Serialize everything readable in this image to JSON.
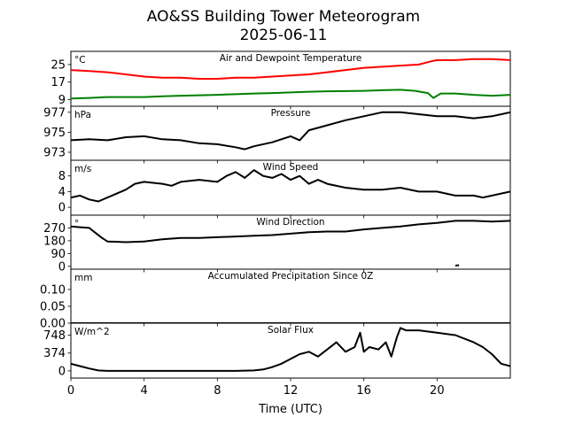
{
  "figure": {
    "title_line1": "AO&SS Building Tower Meteorogram",
    "title_line2": "2025-06-11",
    "xlabel": "Time (UTC)",
    "xticks": [
      "0",
      "4",
      "8",
      "12",
      "16",
      "20"
    ],
    "xlim": [
      0,
      24
    ]
  },
  "chart_data": [
    {
      "type": "line",
      "title": "Air and Dewpoint Temperature",
      "unit": "°C",
      "ylim": [
        6,
        31
      ],
      "yticks": [
        9,
        17,
        25
      ],
      "ytick_labels": [
        "9",
        "17",
        "25"
      ],
      "series": [
        {
          "color": "#ff0000",
          "x": [
            0,
            1,
            2,
            3,
            4,
            5,
            6,
            7,
            8,
            9,
            10,
            11,
            12,
            13,
            14,
            15,
            16,
            17,
            18,
            19,
            19.7,
            20,
            21,
            22,
            23,
            24
          ],
          "values": [
            22.5,
            22,
            21.5,
            20.5,
            19.5,
            19,
            19,
            18.5,
            18.5,
            19,
            19,
            19.5,
            20,
            20.5,
            21.5,
            22.5,
            23.5,
            24,
            24.5,
            25,
            26.5,
            27,
            27,
            27.5,
            27.5,
            27
          ]
        },
        {
          "color": "#008000",
          "x": [
            0,
            1,
            2,
            3,
            4,
            5,
            6,
            7,
            8,
            9,
            10,
            11,
            12,
            13,
            14,
            15,
            16,
            17,
            18,
            18.8,
            19.5,
            19.8,
            20.2,
            21,
            22,
            23,
            24
          ],
          "values": [
            9.5,
            9.8,
            10.2,
            10.2,
            10.2,
            10.5,
            10.8,
            11,
            11.2,
            11.5,
            11.8,
            12,
            12.3,
            12.6,
            12.8,
            12.9,
            13,
            13.3,
            13.5,
            13,
            12,
            9.8,
            11.8,
            11.8,
            11.2,
            10.8,
            11.2
          ]
        }
      ]
    },
    {
      "type": "line",
      "title": "Pressure",
      "unit": "hPa",
      "ylim": [
        972.2,
        977.6
      ],
      "yticks": [
        973,
        975,
        977
      ],
      "ytick_labels": [
        "973",
        "975",
        "977"
      ],
      "series": [
        {
          "color": "#000000",
          "x": [
            0,
            1,
            2,
            3,
            4,
            5,
            6,
            7,
            8,
            9,
            9.5,
            10,
            11,
            12,
            12.5,
            13,
            14,
            15,
            16,
            17,
            18,
            19,
            20,
            21,
            22,
            23,
            24
          ],
          "values": [
            974.2,
            974.3,
            974.2,
            974.5,
            974.6,
            974.3,
            974.2,
            973.9,
            973.8,
            973.5,
            973.3,
            973.6,
            974.0,
            974.6,
            974.2,
            975.2,
            975.7,
            976.2,
            976.6,
            977.0,
            977.0,
            976.8,
            976.6,
            976.6,
            976.4,
            976.6,
            977.0
          ]
        }
      ]
    },
    {
      "type": "line",
      "title": "Wind Speed",
      "unit": "m/s",
      "ylim": [
        -2,
        12
      ],
      "yticks": [
        0,
        4,
        8
      ],
      "ytick_labels": [
        "0",
        "4",
        "8"
      ],
      "series": [
        {
          "color": "#000000",
          "x": [
            0,
            0.5,
            1,
            1.5,
            2,
            3,
            3.5,
            4,
            5,
            5.5,
            6,
            7,
            8,
            8.5,
            9,
            9.5,
            10,
            10.5,
            11,
            11.5,
            12,
            12.5,
            13,
            13.5,
            14,
            15,
            16,
            17,
            18,
            19,
            20,
            21,
            22,
            22.5,
            23,
            24
          ],
          "values": [
            2.5,
            3.0,
            2.0,
            1.5,
            2.5,
            4.5,
            6.0,
            6.5,
            6.0,
            5.5,
            6.5,
            7.0,
            6.5,
            8.0,
            9.0,
            7.5,
            9.5,
            8.0,
            7.5,
            8.5,
            7.0,
            8.0,
            6.0,
            7.0,
            6.0,
            5.0,
            4.5,
            4.5,
            5.0,
            4.0,
            4.0,
            3.0,
            3.0,
            2.5,
            3.0,
            4.0
          ]
        }
      ]
    },
    {
      "type": "line",
      "title": "Wind Direction",
      "unit": "°",
      "ylim": [
        -20,
        360
      ],
      "yticks": [
        0,
        90,
        180,
        270
      ],
      "ytick_labels": [
        "0",
        "90",
        "180",
        "270"
      ],
      "series": [
        {
          "color": "#000000",
          "x": [
            0,
            0.5,
            1,
            1.3,
            1.7,
            2,
            3,
            4,
            5,
            6,
            7,
            8,
            9,
            10,
            11,
            12,
            13,
            14,
            15,
            16,
            17,
            18,
            19,
            20,
            21,
            22,
            23,
            24
          ],
          "values": [
            280,
            275,
            270,
            240,
            200,
            175,
            170,
            175,
            190,
            200,
            200,
            205,
            210,
            215,
            220,
            230,
            240,
            245,
            245,
            260,
            270,
            280,
            295,
            305,
            320,
            320,
            315,
            320
          ]
        },
        {
          "color": "#000000",
          "x": [
            21,
            21.2
          ],
          "values": [
            5,
            8
          ]
        }
      ]
    },
    {
      "type": "line",
      "title": "Accumulated Precipitation Since 0Z",
      "unit": "mm",
      "ylim": [
        0,
        0.16
      ],
      "yticks": [
        0.0,
        0.05,
        0.1
      ],
      "ytick_labels": [
        "0.00",
        "0.05",
        "0.10"
      ],
      "series": [
        {
          "color": "#000000",
          "x": [
            0,
            24
          ],
          "values": [
            0,
            0
          ]
        }
      ]
    },
    {
      "type": "line",
      "title": "Solar Flux",
      "unit": "W/m^2",
      "ylim": [
        -150,
        1000
      ],
      "yticks": [
        0,
        374,
        748
      ],
      "ytick_labels": [
        "0",
        "374",
        "748"
      ],
      "series": [
        {
          "color": "#000000",
          "x": [
            0,
            0.5,
            1,
            1.5,
            2,
            3,
            4,
            5,
            6,
            7,
            8,
            9,
            10,
            10.5,
            11,
            11.5,
            12,
            12.5,
            13,
            13.5,
            14,
            14.5,
            15,
            15.5,
            15.8,
            16,
            16.3,
            16.8,
            17.2,
            17.5,
            17.8,
            18,
            18.3,
            19,
            20,
            21,
            22,
            22.5,
            23,
            23.5,
            24
          ],
          "values": [
            150,
            100,
            50,
            10,
            0,
            0,
            0,
            0,
            0,
            0,
            0,
            0,
            10,
            30,
            80,
            150,
            250,
            350,
            400,
            300,
            450,
            600,
            400,
            500,
            800,
            400,
            500,
            450,
            600,
            300,
            700,
            900,
            850,
            850,
            800,
            750,
            600,
            500,
            350,
            150,
            100
          ]
        }
      ]
    }
  ]
}
